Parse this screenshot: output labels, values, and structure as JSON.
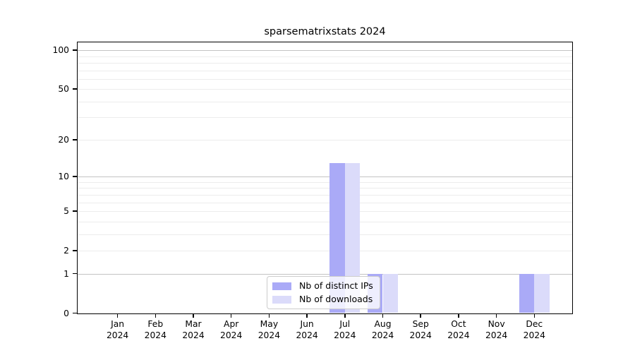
{
  "title": "sparsematrixstats 2024",
  "colors": {
    "bar_ips": "#aaaaf7",
    "bar_downloads": "#dbdbfa",
    "grid_major": "#c3c3c3",
    "grid_minor": "#ececec",
    "axis": "#000000",
    "legend_border": "#cccccc",
    "background": "#ffffff"
  },
  "legend": {
    "items": [
      {
        "label": "Nb of distinct IPs",
        "color_key": "bar_ips"
      },
      {
        "label": "Nb of downloads",
        "color_key": "bar_downloads"
      }
    ]
  },
  "x_axis": {
    "months": [
      "Jan",
      "Feb",
      "Mar",
      "Apr",
      "May",
      "Jun",
      "Jul",
      "Aug",
      "Sep",
      "Oct",
      "Nov",
      "Dec"
    ],
    "year": "2024"
  },
  "chart_data": {
    "type": "bar",
    "title": "sparsematrixstats 2024",
    "categories": [
      "Jan 2024",
      "Feb 2024",
      "Mar 2024",
      "Apr 2024",
      "May 2024",
      "Jun 2024",
      "Jul 2024",
      "Aug 2024",
      "Sep 2024",
      "Oct 2024",
      "Nov 2024",
      "Dec 2024"
    ],
    "series": [
      {
        "name": "Nb of distinct IPs",
        "values": [
          0,
          0,
          0,
          0,
          0,
          0,
          13,
          1,
          0,
          0,
          0,
          1
        ]
      },
      {
        "name": "Nb of downloads",
        "values": [
          0,
          0,
          0,
          0,
          0,
          0,
          13,
          1,
          0,
          0,
          0,
          1
        ]
      }
    ],
    "yscale": "log10(1+x)",
    "y_tick_values": [
      100,
      50,
      20,
      10,
      5,
      2,
      1,
      0
    ],
    "y_tick_labels": [
      "100",
      "50",
      "20",
      "10",
      "5",
      "2",
      "1",
      "0"
    ],
    "ylim": [
      0,
      115
    ],
    "grid": "horizontal",
    "grid_major_values": [
      1,
      10,
      100
    ],
    "grid_minor_values": [
      2,
      3,
      4,
      5,
      6,
      7,
      8,
      9,
      20,
      30,
      40,
      50,
      60,
      70,
      80,
      90
    ],
    "legend_position": "inside-bottom-center"
  }
}
